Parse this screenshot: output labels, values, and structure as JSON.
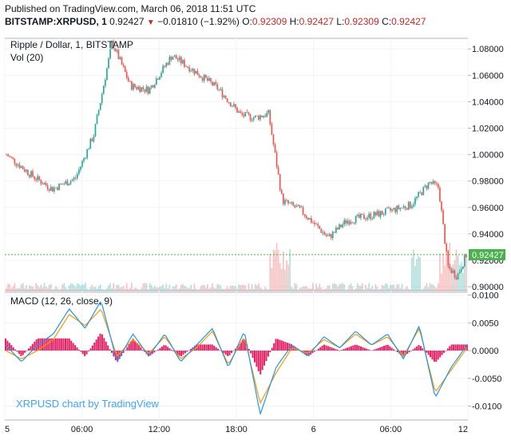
{
  "header": {
    "published": "Published on TradingView.com, March 06, 2018 11:51 UTC",
    "symbol": "BITSTAMP:XRPUSD, 1",
    "last": "0.92427",
    "change": "−0.01810 (−1.92%)",
    "o_label": "O:",
    "o_value": "0.92309",
    "h_label": "H:",
    "h_value": "0.92427",
    "l_label": "L:",
    "l_value": "0.92309",
    "c_label": "C:",
    "c_value": "0.92427"
  },
  "price_pane": {
    "title": "Ripple / Dollar, 1, BITSTAMP",
    "vol_label": "Vol (20)",
    "last_price_tag": "0.92427"
  },
  "macd_pane": {
    "title": "MACD (12, 26, close, 9)"
  },
  "watermark": "XRPUSD chart by TradingView",
  "colors": {
    "up": "#26a69a",
    "down": "#ef5350",
    "macd": "#2196f3",
    "signal": "#ff9800",
    "histogram": "#e91e63",
    "last_price": "#4caf50"
  },
  "chart_data": [
    {
      "type": "candlestick",
      "title": "Ripple / Dollar, 1, BITSTAMP",
      "x_ticks": [
        "5",
        "06:00",
        "12:00",
        "18:00",
        "6",
        "06:00",
        "12"
      ],
      "y_ticks": [
        "0.90000",
        "0.92000",
        "0.94000",
        "0.96000",
        "0.98000",
        "1.00000",
        "1.02000",
        "1.04000",
        "1.06000",
        "1.08000"
      ],
      "ylim": [
        0.897,
        1.088
      ],
      "price_path": [
        {
          "t": 0,
          "p": 1.0
        },
        {
          "t": 0.06,
          "p": 0.983
        },
        {
          "t": 0.1,
          "p": 0.974
        },
        {
          "t": 0.15,
          "p": 0.982
        },
        {
          "t": 0.19,
          "p": 1.015
        },
        {
          "t": 0.23,
          "p": 1.085
        },
        {
          "t": 0.27,
          "p": 1.052
        },
        {
          "t": 0.31,
          "p": 1.049
        },
        {
          "t": 0.36,
          "p": 1.075
        },
        {
          "t": 0.41,
          "p": 1.063
        },
        {
          "t": 0.46,
          "p": 1.05
        },
        {
          "t": 0.51,
          "p": 1.03
        },
        {
          "t": 0.54,
          "p": 1.028
        },
        {
          "t": 0.57,
          "p": 1.031
        },
        {
          "t": 0.6,
          "p": 0.965
        },
        {
          "t": 0.64,
          "p": 0.958
        },
        {
          "t": 0.7,
          "p": 0.937
        },
        {
          "t": 0.74,
          "p": 0.95
        },
        {
          "t": 0.81,
          "p": 0.955
        },
        {
          "t": 0.88,
          "p": 0.962
        },
        {
          "t": 0.92,
          "p": 0.979
        },
        {
          "t": 0.94,
          "p": 0.975
        },
        {
          "t": 0.96,
          "p": 0.915
        },
        {
          "t": 0.98,
          "p": 0.908
        },
        {
          "t": 1.0,
          "p": 0.924
        }
      ],
      "last_price": 0.92427
    },
    {
      "type": "line",
      "title": "MACD (12, 26, close, 9)",
      "y_ticks": [
        "-0.0100",
        "-0.0050",
        "0.0000",
        "0.0050",
        "0.0100"
      ],
      "ylim": [
        -0.0125,
        0.0105
      ],
      "series": [
        {
          "values": [
            0.001,
            -0.002,
            0.001,
            0.003,
            0.0075,
            0.004,
            0.009,
            -0.002,
            0.003,
            -0.001,
            0.003,
            -0.002,
            0.001,
            0.004,
            -0.003,
            0.0035,
            -0.0115,
            -0.003,
            0.001,
            -0.001,
            0.0025,
            0.0005,
            0.0035,
            0.001,
            0.003,
            -0.0015,
            0.0045,
            -0.0085,
            -0.003,
            0.001
          ]
        },
        {
          "values": [
            0.0,
            -0.0015,
            0.0,
            0.002,
            0.0065,
            0.0045,
            0.0075,
            -0.001,
            0.002,
            -0.0005,
            0.0025,
            -0.0015,
            0.0005,
            0.0035,
            -0.0025,
            0.0025,
            -0.0095,
            -0.004,
            0.0005,
            -0.0005,
            0.002,
            0.0005,
            0.003,
            0.001,
            0.0025,
            -0.001,
            0.004,
            -0.0075,
            -0.0035,
            0.0005
          ]
        }
      ]
    }
  ]
}
